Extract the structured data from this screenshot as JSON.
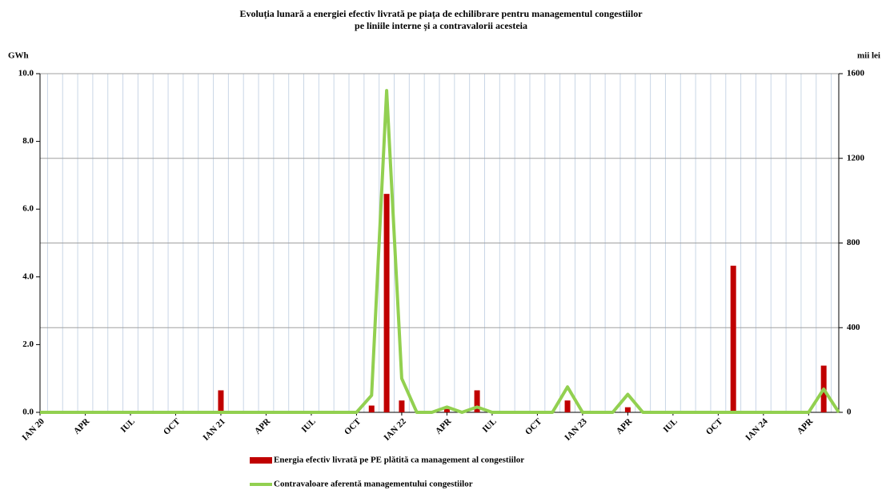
{
  "chart_data": {
    "type": "bar_line",
    "title": [
      "Evoluția lunară a energiei efectiv livrată pe piața de echilibrare pentru managementul congestiilor",
      "pe liniile interne și a contravalorii acesteia"
    ],
    "y_label": "GWh",
    "y2_label": "mii lei",
    "categories": [
      "IAN 20",
      null,
      null,
      "APR",
      null,
      null,
      "IUL",
      null,
      null,
      "OCT",
      null,
      null,
      "IAN 21",
      null,
      null,
      "APR",
      null,
      null,
      "IUL",
      null,
      null,
      "OCT",
      null,
      null,
      "IAN 22",
      null,
      null,
      "APR",
      null,
      null,
      "IUL",
      null,
      null,
      "OCT",
      null,
      null,
      "IAN 23",
      null,
      null,
      "APR",
      null,
      null,
      "IUL",
      null,
      null,
      "OCT",
      null,
      null,
      "IAN 24",
      null,
      null,
      "APR",
      null,
      null
    ],
    "series": [
      {
        "name": "Energia efectiv livrată pe PE plătită ca management al congestiilor",
        "color": "#c00000",
        "type": "bar",
        "values": [
          0,
          0,
          0,
          0,
          0,
          0,
          0,
          0,
          0,
          0,
          0,
          0,
          0.65,
          0,
          0.03,
          0,
          0,
          0,
          0,
          0,
          0,
          0,
          0.2,
          6.45,
          0.35,
          0,
          0,
          0.1,
          0,
          0.65,
          0,
          0,
          0,
          0,
          0,
          0.35,
          0,
          0,
          0,
          0.15,
          0,
          0,
          0,
          0,
          0,
          0,
          4.33,
          0,
          0,
          0,
          0,
          0,
          1.38,
          0
        ]
      },
      {
        "name": "Contravaloare aferentă managementului congestiilor",
        "color": "#92d050",
        "type": "line",
        "axis": "y2",
        "values": [
          0,
          0,
          0,
          0,
          0,
          0,
          0,
          0,
          0,
          0,
          0,
          0,
          0,
          0,
          0,
          0,
          0,
          0,
          0,
          0,
          0,
          0,
          80,
          1520,
          160,
          0,
          0,
          25,
          0,
          25,
          0,
          0,
          0,
          0,
          0,
          120,
          0,
          0,
          0,
          85,
          0,
          0,
          0,
          0,
          0,
          0,
          0,
          0,
          0,
          0,
          0,
          0,
          110,
          0
        ]
      }
    ],
    "ylim": [
      0,
      10
    ],
    "yticks": [
      {
        "value": 0,
        "label": "0.0"
      },
      {
        "value": 2,
        "label": "2.0"
      },
      {
        "value": 4,
        "label": "4.0"
      },
      {
        "value": 6,
        "label": "6.0"
      },
      {
        "value": 8,
        "label": "8.0"
      },
      {
        "value": 10,
        "label": "10.0"
      }
    ],
    "y2lim": [
      0,
      1600
    ],
    "y2ticks": [
      0,
      400,
      800,
      1200,
      1600
    ],
    "grid": true
  }
}
